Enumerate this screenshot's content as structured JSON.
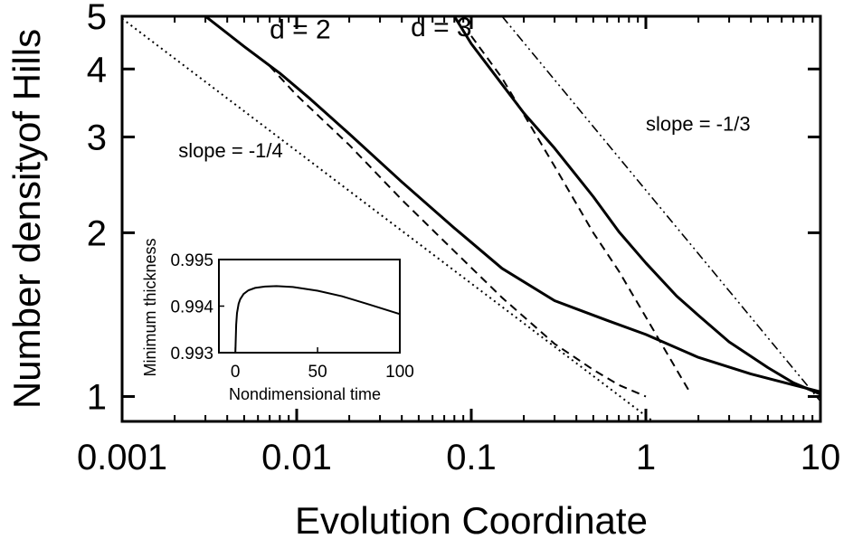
{
  "chart_data": {
    "type": "line",
    "xlabel": "Evolution Coordinate",
    "ylabel": "Number densityof Hills",
    "xscale": "log",
    "yscale": "log",
    "xlim": [
      0.001,
      10
    ],
    "ylim": [
      0.9,
      5
    ],
    "x_ticks": [
      0.001,
      0.01,
      0.1,
      1,
      10
    ],
    "x_tick_labels": [
      "0.001",
      "0.01",
      "0.1",
      "1",
      "10"
    ],
    "y_ticks": [
      1,
      2,
      3,
      4,
      5
    ],
    "y_tick_labels": [
      "1",
      "2",
      "3",
      "4",
      "5"
    ],
    "grid": false,
    "legend": "none",
    "series": [
      {
        "style": "solid-thick",
        "x": [
          0.003,
          0.005,
          0.008,
          0.012,
          0.02,
          0.04,
          0.08,
          0.15,
          0.3,
          0.6,
          1.0,
          2.0,
          4.0,
          7.0,
          10.0
        ],
        "y": [
          5.0,
          4.4,
          3.93,
          3.52,
          3.04,
          2.48,
          2.04,
          1.72,
          1.5,
          1.38,
          1.3,
          1.18,
          1.1,
          1.05,
          1.02
        ]
      },
      {
        "style": "solid-thick",
        "x": [
          0.08,
          0.1,
          0.15,
          0.2,
          0.3,
          0.5,
          0.7,
          1.0,
          1.5,
          2.0,
          3.0,
          5.0,
          7.0,
          10.0
        ],
        "y": [
          5.0,
          4.45,
          3.75,
          3.32,
          2.86,
          2.33,
          2.01,
          1.76,
          1.53,
          1.41,
          1.26,
          1.13,
          1.06,
          1.01
        ]
      },
      {
        "style": "dashed",
        "x": [
          0.007,
          0.01,
          0.02,
          0.04,
          0.08,
          0.15,
          0.3,
          0.5,
          0.7,
          1.0
        ],
        "y": [
          4.05,
          3.58,
          2.9,
          2.3,
          1.85,
          1.52,
          1.25,
          1.12,
          1.05,
          1.0
        ]
      },
      {
        "style": "dashed",
        "x": [
          0.1,
          0.15,
          0.2,
          0.3,
          0.5,
          0.7,
          1.0,
          1.5,
          1.75
        ],
        "y": [
          4.6,
          3.85,
          3.3,
          2.65,
          2.0,
          1.7,
          1.4,
          1.12,
          1.03
        ]
      },
      {
        "style": "dotted",
        "x": [
          0.001,
          1.1
        ],
        "y": [
          4.95,
          0.9
        ]
      },
      {
        "style": "dash-dot",
        "x": [
          0.15,
          10.0
        ],
        "y": [
          5.0,
          0.98
        ]
      }
    ],
    "annotations": [
      {
        "text": "d = 2",
        "x": 0.007,
        "y": 4.55,
        "size": "big"
      },
      {
        "text": "d = 3",
        "x": 0.045,
        "y": 4.6,
        "size": "big"
      },
      {
        "text": "slope = -1/4",
        "x": 0.0021,
        "y": 2.75,
        "size": "normal"
      },
      {
        "text": "slope = -1/3",
        "x": 1.0,
        "y": 3.08,
        "size": "normal"
      }
    ],
    "inset": {
      "type": "line",
      "xlabel": "Nondimensional time",
      "ylabel": "Minimum thickness",
      "xlim": [
        -10,
        100
      ],
      "ylim": [
        0.993,
        0.995
      ],
      "x_ticks": [
        0,
        50,
        100
      ],
      "x_tick_labels": [
        "0",
        "50",
        "100"
      ],
      "y_ticks": [
        0.993,
        0.994,
        0.995
      ],
      "y_tick_labels": [
        "0.993",
        "0.994",
        "0.995"
      ],
      "series": [
        {
          "x": [
            0,
            0.5,
            1,
            2,
            3,
            5,
            8,
            12,
            18,
            25,
            35,
            50,
            65,
            80,
            100
          ],
          "y": [
            0.993,
            0.9936,
            0.99385,
            0.99405,
            0.99415,
            0.99426,
            0.99434,
            0.99439,
            0.99442,
            0.99443,
            0.99441,
            0.99433,
            0.99421,
            0.99405,
            0.99383
          ]
        }
      ]
    }
  }
}
